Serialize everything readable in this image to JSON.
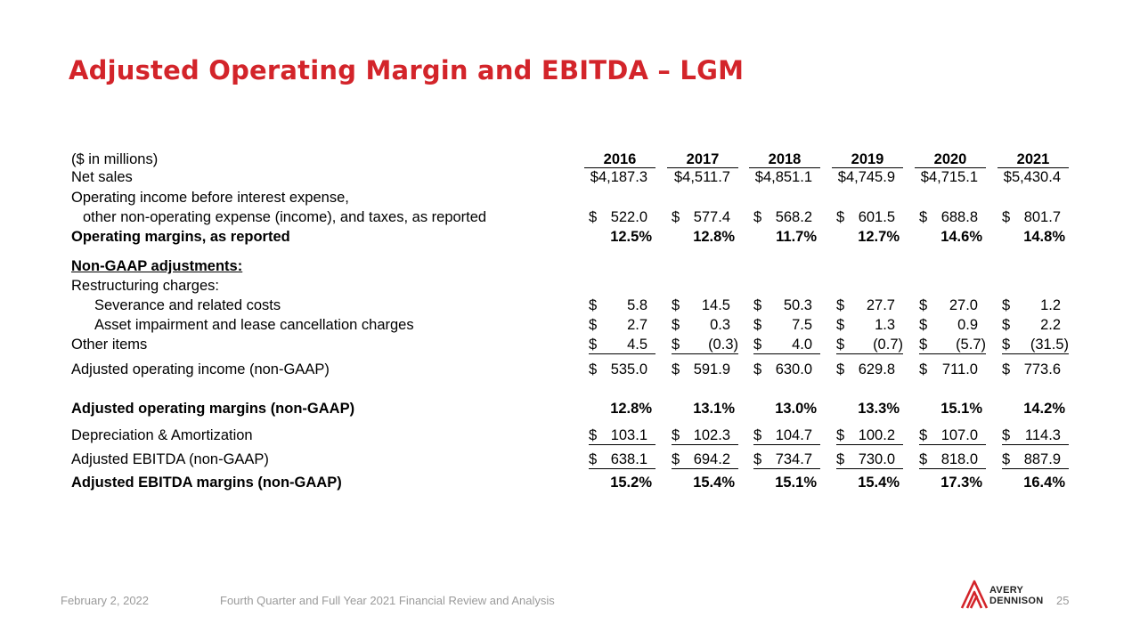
{
  "title": "Adjusted Operating Margin and EBITDA – LGM",
  "table": {
    "units_label": "($ in millions)",
    "years": [
      "2016",
      "2017",
      "2018",
      "2019",
      "2020",
      "2021"
    ],
    "rows": [
      {
        "label": "Net sales",
        "indent": 0,
        "bold": false,
        "values": [
          "$4,187.3",
          "$4,511.7",
          "$4,851.1",
          "$4,745.9",
          "$4,715.1",
          "$5,430.4"
        ],
        "dollar": false,
        "type": "plain"
      },
      {
        "label": "Operating income before interest expense,",
        "indent": 0,
        "bold": false,
        "values": null
      },
      {
        "label": "other non-operating expense (income), and taxes, as reported",
        "indent": 1,
        "bold": false,
        "values": [
          "522.0",
          "577.4",
          "568.2",
          "601.5",
          "688.8",
          "801.7"
        ],
        "dollar": true
      },
      {
        "label": "Operating margins, as reported",
        "indent": 0,
        "bold": true,
        "values": [
          "12.5%",
          "12.8%",
          "11.7%",
          "12.7%",
          "14.6%",
          "14.8%"
        ],
        "dollar": false,
        "type": "pct"
      },
      {
        "label": "Non-GAAP adjustments:",
        "indent": 0,
        "bold": true,
        "underline": true,
        "values": null
      },
      {
        "label": "Restructuring charges:",
        "indent": 0,
        "bold": false,
        "values": null
      },
      {
        "label": "Severance and related costs",
        "indent": 2,
        "bold": false,
        "values": [
          "5.8",
          "14.5",
          "50.3",
          "27.7",
          "27.0",
          "1.2"
        ],
        "dollar": true
      },
      {
        "label": "Asset impairment and lease cancellation charges",
        "indent": 2,
        "bold": false,
        "values": [
          "2.7",
          "0.3",
          "7.5",
          "1.3",
          "0.9",
          "2.2"
        ],
        "dollar": true
      },
      {
        "label": "Other items",
        "indent": 0,
        "bold": false,
        "values": [
          "4.5",
          "(0.3)",
          "4.0",
          "(0.7)",
          "(5.7)",
          "(31.5)"
        ],
        "dollar": true
      },
      {
        "label": "Adjusted operating income (non-GAAP)",
        "indent": 0,
        "bold": false,
        "values": [
          "535.0",
          "591.9",
          "630.0",
          "629.8",
          "711.0",
          "773.6"
        ],
        "dollar": true
      },
      {
        "label": "Adjusted operating margins (non-GAAP)",
        "indent": 0,
        "bold": true,
        "values": [
          "12.8%",
          "13.1%",
          "13.0%",
          "13.3%",
          "15.1%",
          "14.2%"
        ],
        "dollar": false,
        "type": "pct"
      },
      {
        "label": "Depreciation & Amortization",
        "indent": 0,
        "bold": false,
        "values": [
          "103.1",
          "102.3",
          "104.7",
          "100.2",
          "107.0",
          "114.3"
        ],
        "dollar": true
      },
      {
        "label": "Adjusted EBITDA (non-GAAP)",
        "indent": 0,
        "bold": false,
        "values": [
          "638.1",
          "694.2",
          "734.7",
          "730.0",
          "818.0",
          "887.9"
        ],
        "dollar": true
      },
      {
        "label": "Adjusted EBITDA margins (non-GAAP)",
        "indent": 0,
        "bold": true,
        "values": [
          "15.2%",
          "15.4%",
          "15.1%",
          "15.4%",
          "17.3%",
          "16.4%"
        ],
        "dollar": false,
        "type": "pct"
      }
    ]
  },
  "footer": {
    "date": "February 2, 2022",
    "subtitle": "Fourth Quarter and Full Year 2021 Financial Review and Analysis",
    "page": "25"
  },
  "logo": {
    "line1": "AVERY",
    "line2": "DENNISON",
    "color": "#d3242a"
  },
  "colors": {
    "title": "#d3242a",
    "footer_text": "#9a9a9a"
  }
}
